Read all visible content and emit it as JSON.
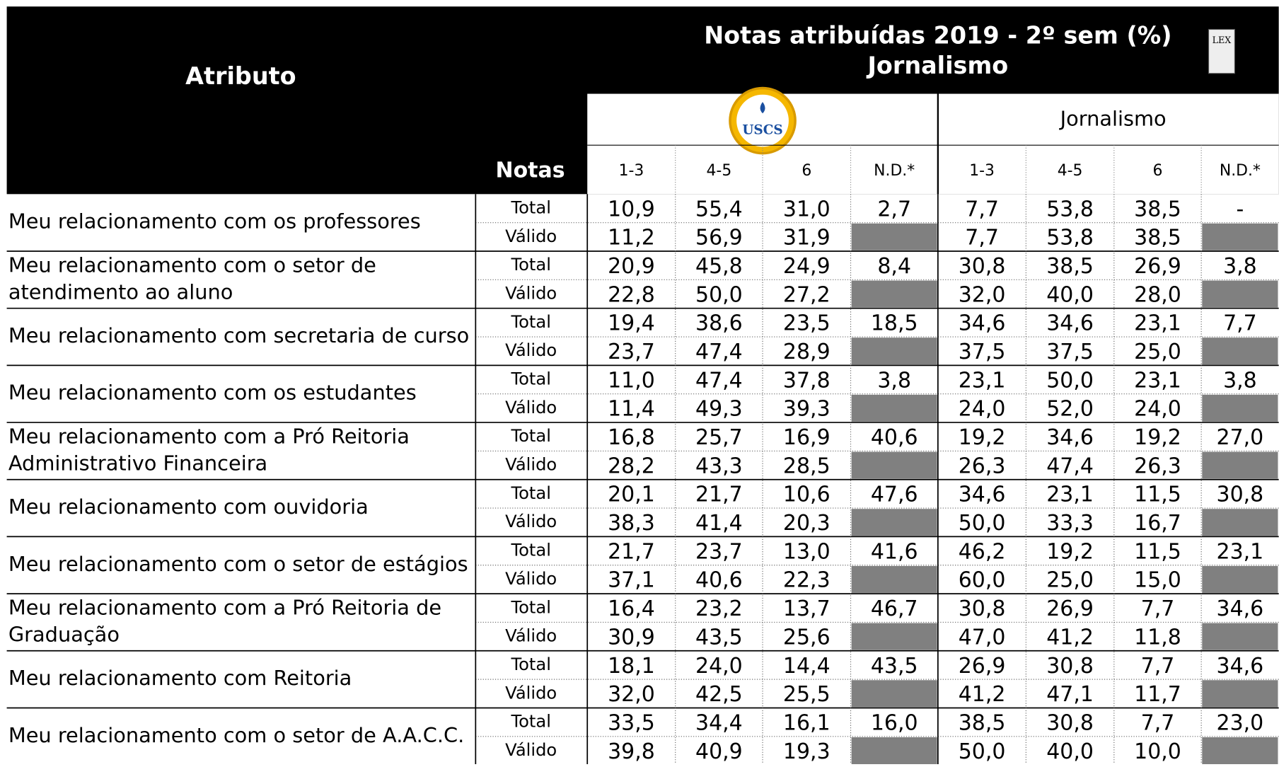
{
  "header": {
    "attribute": "Atributo",
    "title": "Notas atribuídas 2019 - 2º sem (%)",
    "subtitle": "Jornalismo",
    "notas": "Notas",
    "logo": "USCS",
    "lex": "LEX",
    "group2": "Jornalismo",
    "columns": [
      "1-3",
      "4-5",
      "6",
      "N.D.*"
    ]
  },
  "row_labels": [
    "Total",
    "Válido"
  ],
  "rows": [
    {
      "attribute": [
        "Meu relacionamento com os professores"
      ],
      "total": [
        "10,9",
        "55,4",
        "31,0",
        "2,7",
        "7,7",
        "53,8",
        "38,5",
        "-"
      ],
      "valido": [
        "11,2",
        "56,9",
        "31,9",
        "7,7",
        "53,8",
        "38,5"
      ]
    },
    {
      "attribute": [
        "Meu relacionamento com o setor de",
        "atendimento ao aluno"
      ],
      "total": [
        "20,9",
        "45,8",
        "24,9",
        "8,4",
        "30,8",
        "38,5",
        "26,9",
        "3,8"
      ],
      "valido": [
        "22,8",
        "50,0",
        "27,2",
        "32,0",
        "40,0",
        "28,0"
      ]
    },
    {
      "attribute": [
        "Meu relacionamento com secretaria de curso"
      ],
      "total": [
        "19,4",
        "38,6",
        "23,5",
        "18,5",
        "34,6",
        "34,6",
        "23,1",
        "7,7"
      ],
      "valido": [
        "23,7",
        "47,4",
        "28,9",
        "37,5",
        "37,5",
        "25,0"
      ]
    },
    {
      "attribute": [
        "Meu relacionamento com os estudantes"
      ],
      "total": [
        "11,0",
        "47,4",
        "37,8",
        "3,8",
        "23,1",
        "50,0",
        "23,1",
        "3,8"
      ],
      "valido": [
        "11,4",
        "49,3",
        "39,3",
        "24,0",
        "52,0",
        "24,0"
      ]
    },
    {
      "attribute": [
        "Meu relacionamento com a Pró Reitoria",
        "Administrativo Financeira"
      ],
      "total": [
        "16,8",
        "25,7",
        "16,9",
        "40,6",
        "19,2",
        "34,6",
        "19,2",
        "27,0"
      ],
      "valido": [
        "28,2",
        "43,3",
        "28,5",
        "26,3",
        "47,4",
        "26,3"
      ]
    },
    {
      "attribute": [
        "Meu relacionamento com ouvidoria"
      ],
      "total": [
        "20,1",
        "21,7",
        "10,6",
        "47,6",
        "34,6",
        "23,1",
        "11,5",
        "30,8"
      ],
      "valido": [
        "38,3",
        "41,4",
        "20,3",
        "50,0",
        "33,3",
        "16,7"
      ]
    },
    {
      "attribute": [
        "Meu relacionamento com o setor de estágios"
      ],
      "total": [
        "21,7",
        "23,7",
        "13,0",
        "41,6",
        "46,2",
        "19,2",
        "11,5",
        "23,1"
      ],
      "valido": [
        "37,1",
        "40,6",
        "22,3",
        "60,0",
        "25,0",
        "15,0"
      ]
    },
    {
      "attribute": [
        "Meu relacionamento com a Pró Reitoria de",
        "Graduação"
      ],
      "total": [
        "16,4",
        "23,2",
        "13,7",
        "46,7",
        "30,8",
        "26,9",
        "7,7",
        "34,6"
      ],
      "valido": [
        "30,9",
        "43,5",
        "25,6",
        "47,0",
        "41,2",
        "11,8"
      ]
    },
    {
      "attribute": [
        "Meu relacionamento com Reitoria"
      ],
      "total": [
        "18,1",
        "24,0",
        "14,4",
        "43,5",
        "26,9",
        "30,8",
        "7,7",
        "34,6"
      ],
      "valido": [
        "32,0",
        "42,5",
        "25,5",
        "41,2",
        "47,1",
        "11,7"
      ]
    },
    {
      "attribute": [
        "Meu relacionamento com o setor de A.A.C.C."
      ],
      "total": [
        "33,5",
        "34,4",
        "16,1",
        "16,0",
        "38,5",
        "30,8",
        "7,7",
        "23,0"
      ],
      "valido": [
        "39,8",
        "40,9",
        "19,3",
        "50,0",
        "40,0",
        "10,0"
      ]
    }
  ]
}
